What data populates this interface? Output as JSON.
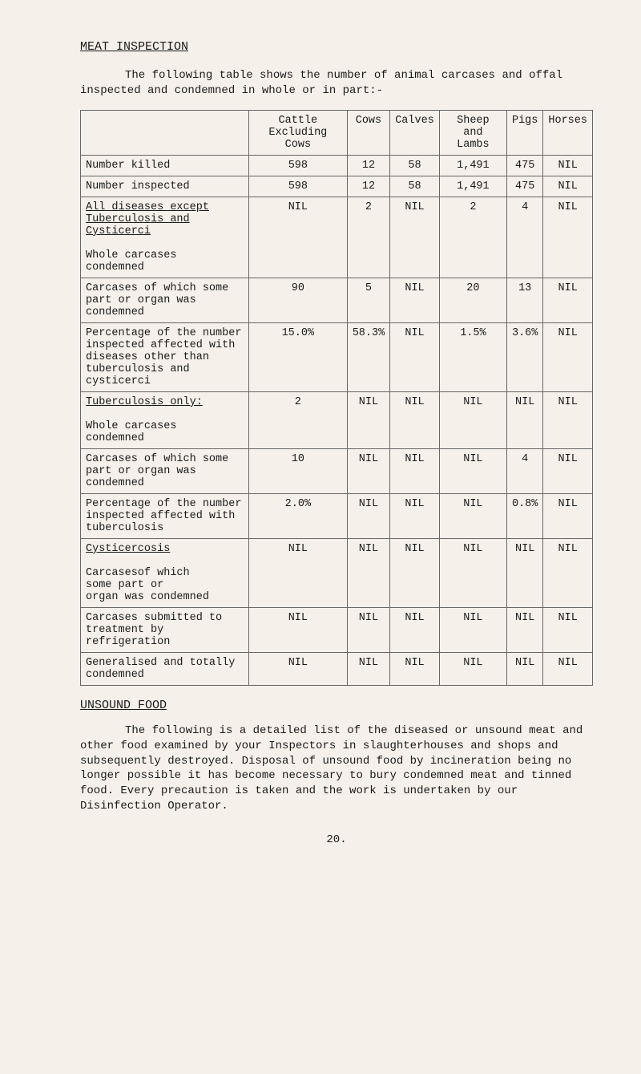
{
  "heading": "MEAT INSPECTION",
  "intro": "The following table shows the number of animal carcases and offal inspected and condemned in whole or in part:-",
  "table": {
    "columns": [
      "",
      "Cattle Excluding Cows",
      "Cows",
      "Calves",
      "Sheep and Lambs",
      "Pigs",
      "Horses"
    ],
    "rows": [
      {
        "label": "Number killed",
        "values": [
          "598",
          "12",
          "58",
          "1,491",
          "475",
          "NIL"
        ]
      },
      {
        "label": "Number inspected",
        "values": [
          "598",
          "12",
          "58",
          "1,491",
          "475",
          "NIL"
        ]
      },
      {
        "label_line1": "All diseases except",
        "label_line2": "Tuberculosis and",
        "label_line3": "Cysticerci",
        "label_plain1": "Whole carcases",
        "label_plain2": "condemned",
        "values": [
          "NIL",
          "2",
          "NIL",
          "2",
          "4",
          "NIL"
        ],
        "underlined": true
      },
      {
        "label": "Carcases of which some part or organ was condemned",
        "values": [
          "90",
          "5",
          "NIL",
          "20",
          "13",
          "NIL"
        ]
      },
      {
        "label": "Percentage of the number inspected affected with diseases other than tuberculosis and cysticerci",
        "values": [
          "15.0%",
          "58.3%",
          "NIL",
          "1.5%",
          "3.6%",
          "NIL"
        ]
      },
      {
        "label_line1": "Tuberculosis only:",
        "label_plain1": "Whole carcases",
        "label_plain2": "condemned",
        "values": [
          "2",
          "NIL",
          "NIL",
          "NIL",
          "NIL",
          "NIL"
        ],
        "underlined": true
      },
      {
        "label": "Carcases of which some part or organ was condemned",
        "values": [
          "10",
          "NIL",
          "NIL",
          "NIL",
          "4",
          "NIL"
        ]
      },
      {
        "label": "Percentage of the number inspected affected with tuberculosis",
        "values": [
          "2.0%",
          "NIL",
          "NIL",
          "NIL",
          "0.8%",
          "NIL"
        ]
      },
      {
        "label_line1": "Cysticercosis",
        "label_plain1": "Carcasesof which",
        "label_plain2": "some part or",
        "label_plain3": "organ was condemned",
        "values": [
          "NIL",
          "NIL",
          "NIL",
          "NIL",
          "NIL",
          "NIL"
        ],
        "underlined": true
      },
      {
        "label": "Carcases submitted to treatment by refrigeration",
        "values": [
          "NIL",
          "NIL",
          "NIL",
          "NIL",
          "NIL",
          "NIL"
        ]
      },
      {
        "label": "Generalised and totally condemned",
        "values": [
          "NIL",
          "NIL",
          "NIL",
          "NIL",
          "NIL",
          "NIL"
        ]
      }
    ]
  },
  "section_heading": "UNSOUND FOOD",
  "para1": "The following is a detailed list of the diseased or unsound meat and other food examined by your Inspectors in slaughterhouses and shops and subsequently destroyed.   Disposal of unsound food by incineration being no longer possible it has become necessary to bury condemned meat and tinned food.   Every precaution is taken and the work is undertaken by our Disinfection Operator.",
  "page_num": "20."
}
